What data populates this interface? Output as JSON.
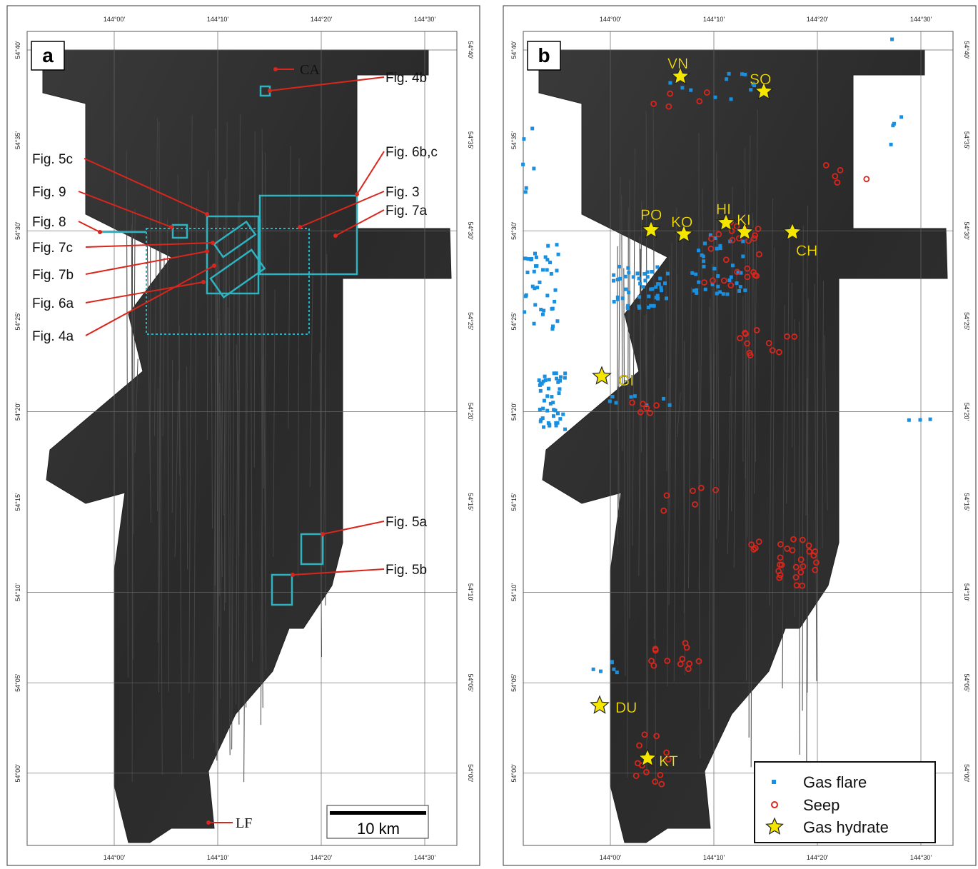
{
  "panels": [
    {
      "label": "a",
      "longitudes": [
        "144°00'",
        "144°10'",
        "144°20'",
        "144°30'"
      ],
      "latitudes": [
        "54°40'",
        "54°35'",
        "54°30'",
        "54°25'",
        "54°20'",
        "54°15'",
        "54°10'",
        "54°05'",
        "54°00'"
      ],
      "annotations": [
        "CA",
        "Fig. 4b",
        "Fig. 5c",
        "Fig. 9",
        "Fig. 8",
        "Fig. 7c",
        "Fig. 7b",
        "Fig. 6a",
        "Fig. 4a",
        "Fig. 6b,c",
        "Fig. 3",
        "Fig. 7a",
        "Fig. 5a",
        "Fig. 5b",
        "LF"
      ],
      "scale_bar": "10 km"
    },
    {
      "label": "b",
      "longitudes": [
        "144°00'",
        "144°10'",
        "144°20'",
        "144°30'"
      ],
      "latitudes": [
        "54°40'",
        "54°35'",
        "54°30'",
        "54°25'",
        "54°20'",
        "54°15'",
        "54°10'",
        "54°05'",
        "54°00'"
      ],
      "sites": [
        "VN",
        "SO",
        "PO",
        "KO",
        "HI",
        "KI",
        "CH",
        "GI",
        "DU",
        "KT"
      ],
      "legend": [
        "Gas flare",
        "Seep",
        "Gas hydrate"
      ]
    }
  ]
}
